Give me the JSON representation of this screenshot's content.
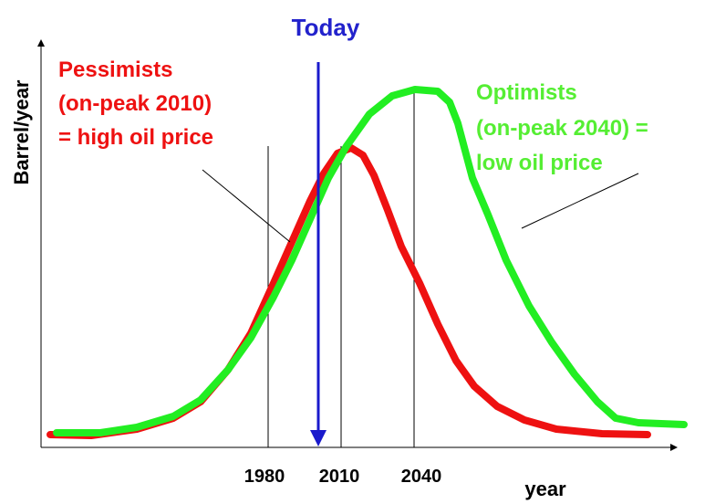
{
  "today": "Today",
  "y_axis_label": "Barrel/year",
  "x_axis_label": "year",
  "pessimists": [
    "Pessimists",
    "(on-peak 2010)",
    "= high oil price"
  ],
  "optimists": [
    "Optimists",
    "(on-peak 2040) =",
    "low oil price"
  ],
  "years": [
    "1980",
    "2010",
    "2040"
  ]
}
